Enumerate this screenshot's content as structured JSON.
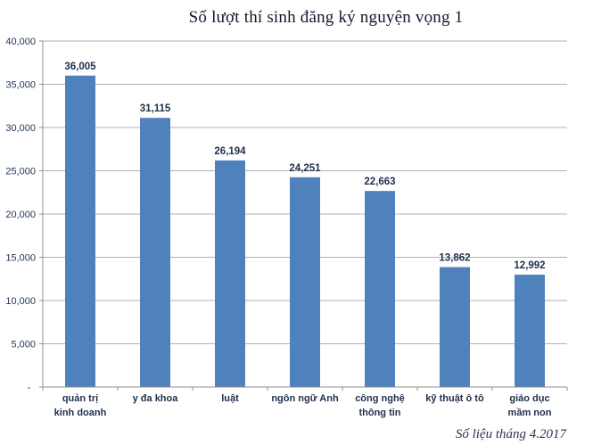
{
  "chart_data": {
    "type": "bar",
    "title": "Số lượt thí sinh đăng ký nguyện vọng 1",
    "source_note": "Số liệu tháng 4.2017",
    "categories": [
      "quản trị kinh doanh",
      "y đa khoa",
      "luật",
      "ngôn ngữ Anh",
      "công nghệ thông tin",
      "kỹ thuật ô tô",
      "giáo dục mầm non"
    ],
    "category_lines": [
      [
        "quản trị",
        "kinh doanh"
      ],
      [
        "y đa khoa"
      ],
      [
        "luật"
      ],
      [
        "ngôn ngữ Anh"
      ],
      [
        "công nghệ",
        "thông tin"
      ],
      [
        "kỹ thuật ô tô"
      ],
      [
        "giáo dục",
        "mầm non"
      ]
    ],
    "values": [
      36005,
      31115,
      26194,
      24251,
      22663,
      13862,
      12992
    ],
    "value_labels": [
      "36,005",
      "31,115",
      "26,194",
      "24,251",
      "22,663",
      "13,862",
      "12,992"
    ],
    "xlabel": "",
    "ylabel": "",
    "ylim": [
      0,
      40000
    ],
    "y_ticks": [
      0,
      5000,
      10000,
      15000,
      20000,
      25000,
      30000,
      35000,
      40000
    ],
    "y_tick_labels": [
      "-",
      "5,000",
      "10,000",
      "15,000",
      "20,000",
      "25,000",
      "30,000",
      "35,000",
      "40,000"
    ],
    "grid": true,
    "legend": false,
    "colors": {
      "bar": "#4f81bd",
      "gridline": "#b0b0b0",
      "axis": "#8f8f8f",
      "tick_label": "#1f3457",
      "value_label": "#1f2f4d",
      "category_label": "#1f2f4d",
      "title": "#16162e",
      "source_note": "#2c3350"
    }
  }
}
